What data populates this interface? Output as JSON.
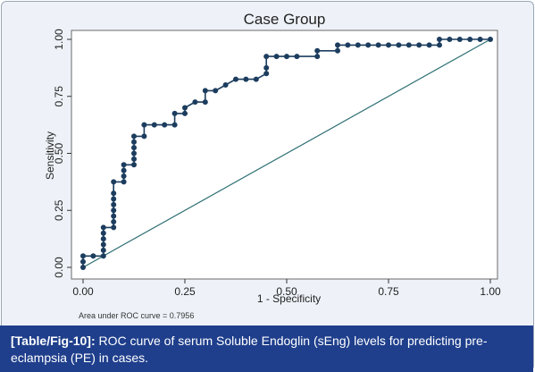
{
  "caption": {
    "label": "[Table/Fig-10]:",
    "text": "ROC curve of serum Soluble Endoglin (sEng) levels for predicting pre-eclampsia (PE) in cases."
  },
  "chart_data": {
    "type": "line",
    "title": "Case Group",
    "xlabel": "1 - Specificity",
    "ylabel": "Sensitivity",
    "xlim": [
      0,
      1
    ],
    "ylim": [
      0,
      1
    ],
    "xticks": [
      "0.00",
      "0.25",
      "0.50",
      "0.75",
      "1.00"
    ],
    "yticks": [
      "0.00",
      "0.25",
      "0.50",
      "0.75",
      "1.00"
    ],
    "note": "Area under ROC curve = 0.7956",
    "grid": false,
    "colors": {
      "curve": "#1c3d5e",
      "reference": "#2e6f74",
      "plot_bg": "#ffffff",
      "outer_bg": "#eef2f8"
    },
    "series": [
      {
        "x": [
          0,
          0,
          0,
          0.025,
          0.05,
          0.05,
          0.05,
          0.05,
          0.05,
          0.05,
          0.075,
          0.075,
          0.075,
          0.075,
          0.075,
          0.075,
          0.075,
          0.075,
          0.1,
          0.1,
          0.1,
          0.1,
          0.125,
          0.125,
          0.125,
          0.125,
          0.125,
          0.125,
          0.15,
          0.15,
          0.175,
          0.2,
          0.225,
          0.225,
          0.25,
          0.25,
          0.275,
          0.3,
          0.3,
          0.325,
          0.35,
          0.375,
          0.4,
          0.425,
          0.45,
          0.45,
          0.45,
          0.475,
          0.5,
          0.525,
          0.575,
          0.575,
          0.625,
          0.625,
          0.65,
          0.675,
          0.7,
          0.725,
          0.75,
          0.775,
          0.8,
          0.825,
          0.85,
          0.875,
          0.875,
          0.9,
          0.925,
          0.95,
          0.975,
          1.0
        ],
        "y": [
          0,
          0.025,
          0.05,
          0.05,
          0.05,
          0.075,
          0.1,
          0.125,
          0.15,
          0.175,
          0.175,
          0.2,
          0.225,
          0.25,
          0.275,
          0.3,
          0.325,
          0.375,
          0.375,
          0.4,
          0.425,
          0.45,
          0.45,
          0.475,
          0.5,
          0.525,
          0.55,
          0.575,
          0.575,
          0.625,
          0.625,
          0.625,
          0.625,
          0.675,
          0.675,
          0.7,
          0.725,
          0.725,
          0.775,
          0.775,
          0.8,
          0.825,
          0.825,
          0.825,
          0.85,
          0.875,
          0.925,
          0.925,
          0.925,
          0.925,
          0.925,
          0.95,
          0.95,
          0.975,
          0.975,
          0.975,
          0.975,
          0.975,
          0.975,
          0.975,
          0.975,
          0.975,
          0.975,
          0.975,
          1.0,
          1.0,
          1.0,
          1.0,
          1.0,
          1.0
        ]
      },
      {
        "x": [
          0,
          1
        ],
        "y": [
          0,
          1
        ]
      }
    ]
  }
}
